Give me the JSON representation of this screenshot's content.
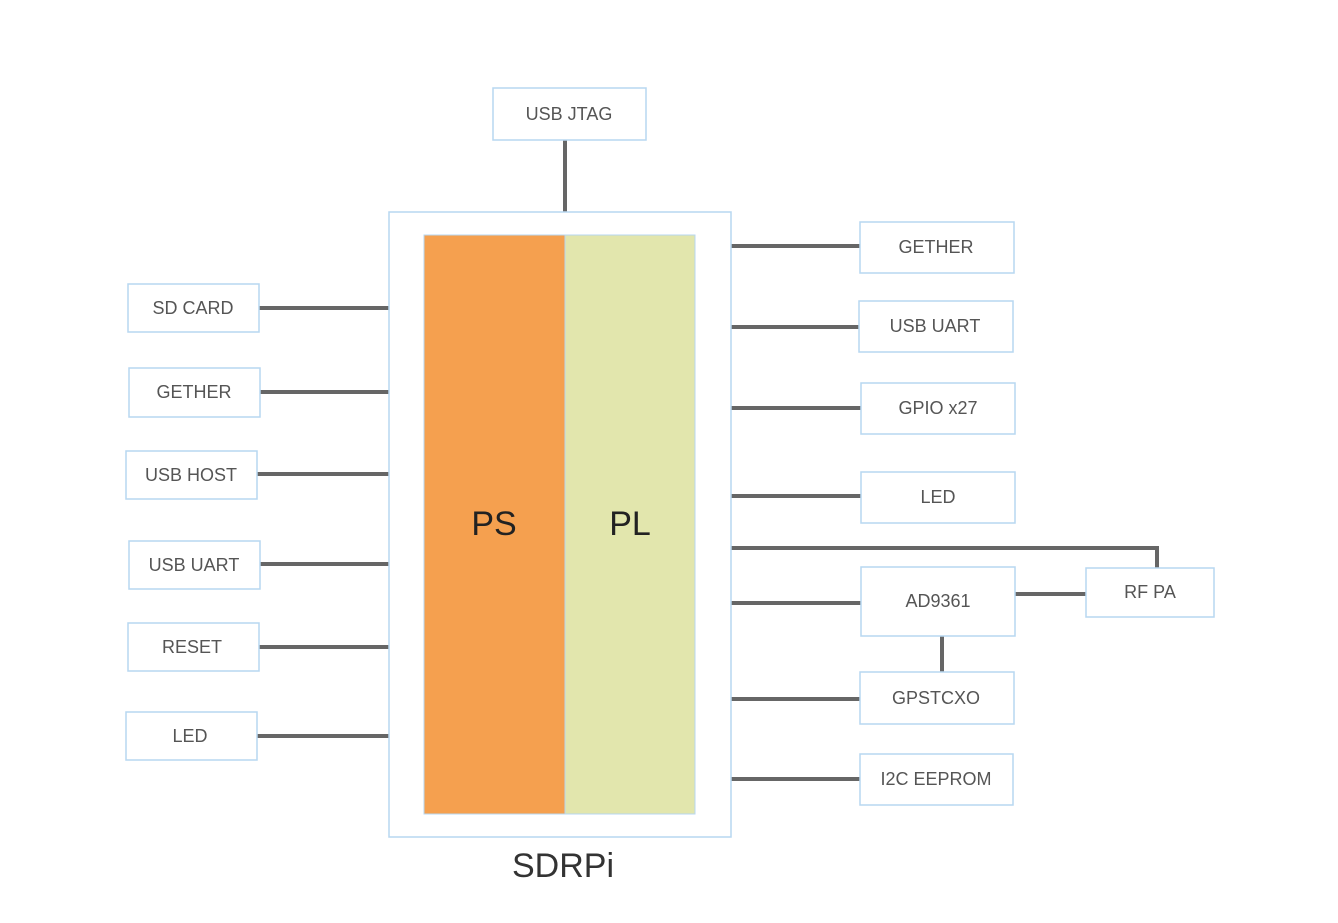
{
  "board": {
    "title": "SDRPi",
    "ps_label": "PS",
    "pl_label": "PL",
    "ps_color": "#f5a04f",
    "pl_color": "#e2e6ad",
    "border_color": "#b7d7f1",
    "wire_color": "#666666"
  },
  "top": {
    "usb_jtag": "USB JTAG"
  },
  "left": {
    "sd_card": "SD CARD",
    "gether": "GETHER",
    "usb_host": "USB HOST",
    "usb_uart": "USB UART",
    "reset": "RESET",
    "led": "LED"
  },
  "right": {
    "gether": "GETHER",
    "usb_uart": "USB UART",
    "gpio": "GPIO x27",
    "led": "LED",
    "ad9361": "AD9361",
    "rf_pa": "RF PA",
    "gpstcxo": "GPSTCXO",
    "i2c_eeprom": "I2C EEPROM"
  }
}
